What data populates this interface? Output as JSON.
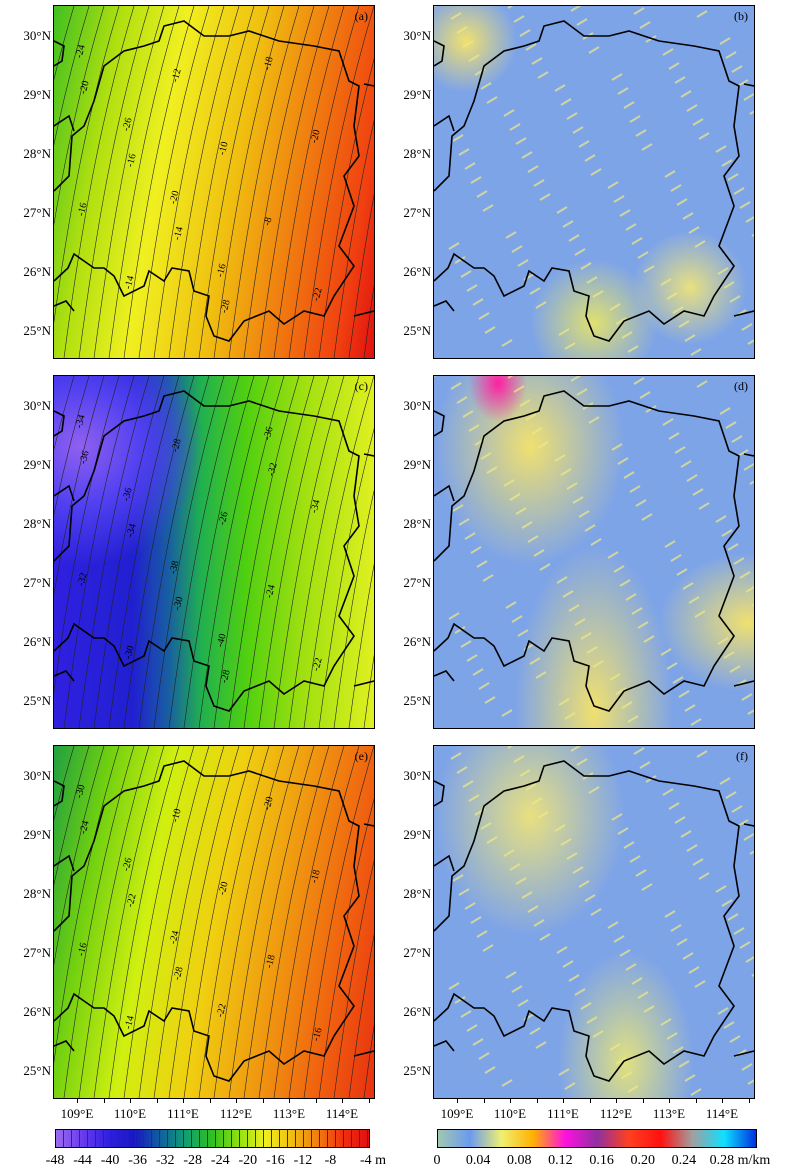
{
  "panels": [
    {
      "id": "a",
      "label": "(a)",
      "type": "height",
      "contour_labels": [
        "-24",
        "-26",
        "-20",
        "-16",
        "-18",
        "-20",
        "-16",
        "-14",
        "-12",
        "-10",
        "-8",
        "-22",
        "-20",
        "-16",
        "-14",
        "-28"
      ]
    },
    {
      "id": "b",
      "label": "(b)",
      "type": "gradient"
    },
    {
      "id": "c",
      "label": "(c)",
      "type": "height",
      "contour_labels": [
        "-34",
        "-36",
        "-38",
        "-40",
        "-36",
        "-34",
        "-32",
        "-30",
        "-28",
        "-26",
        "-24",
        "-22",
        "-36",
        "-34",
        "-30",
        "-28",
        "-32"
      ]
    },
    {
      "id": "d",
      "label": "(d)",
      "type": "gradient"
    },
    {
      "id": "e",
      "label": "(e)",
      "type": "height",
      "contour_labels": [
        "-30",
        "-26",
        "-24",
        "-22",
        "-20",
        "-18",
        "-16",
        "-14",
        "-10",
        "-20",
        "-18",
        "-16",
        "-24",
        "-22",
        "-28"
      ]
    },
    {
      "id": "f",
      "label": "(f)",
      "type": "gradient"
    }
  ],
  "lat_labels": [
    "30°N",
    "29°N",
    "28°N",
    "27°N",
    "26°N",
    "25°N"
  ],
  "lon_labels": [
    "109°E",
    "110°E",
    "111°E",
    "112°E",
    "113°E",
    "114°E"
  ],
  "colorbar_height": {
    "labels": [
      "-48",
      "-44",
      "-40",
      "-36",
      "-32",
      "-28",
      "-24",
      "-20",
      "-16",
      "-12",
      "-8",
      "-4 m"
    ],
    "colors": [
      "#9a6cf0",
      "#6a3cf0",
      "#3020e0",
      "#1818c0",
      "#1060a0",
      "#10a070",
      "#30c020",
      "#90e010",
      "#f0f020",
      "#f0c010",
      "#f08010",
      "#f03010",
      "#e01010"
    ]
  },
  "colorbar_gradient": {
    "labels": [
      "0",
      "0.04",
      "0.08",
      "0.12",
      "0.16",
      "0.20",
      "0.24",
      "0.28 m/km"
    ],
    "colors": [
      "#a0c8b0",
      "#6a9af0",
      "#f0f070",
      "#ffb000",
      "#ff10e0",
      "#9030a0",
      "#ff4020",
      "#ff1010",
      "#a0a0a0",
      "#10e0ff",
      "#0030e0"
    ]
  }
}
